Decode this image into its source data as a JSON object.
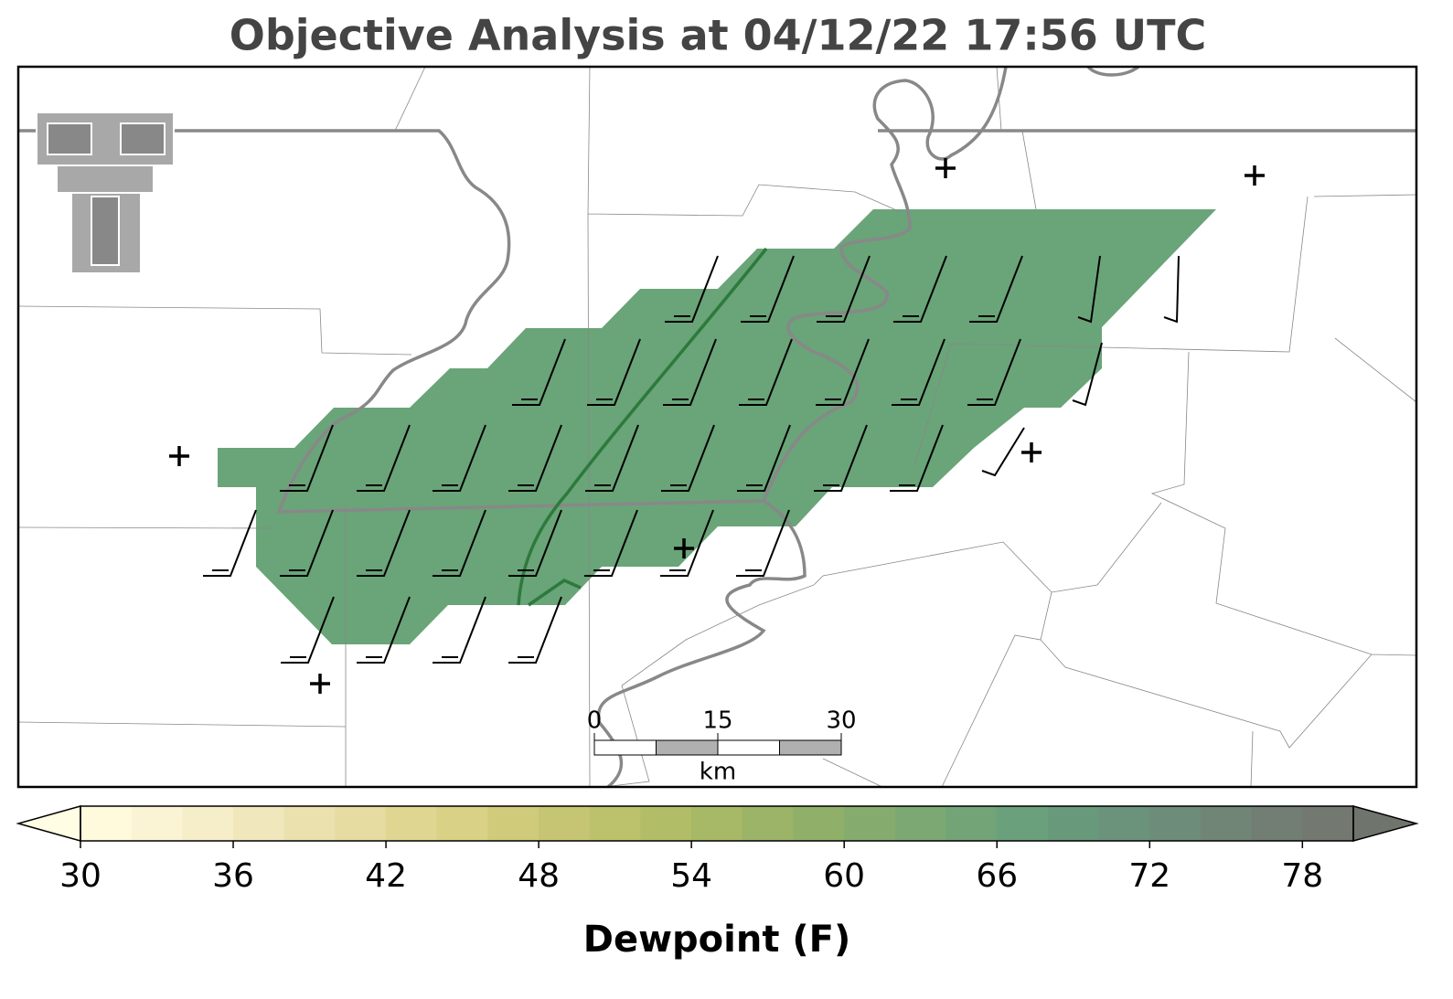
{
  "title": "Objective Analysis at 04/12/22 17:56 UTC",
  "colorbar": {
    "label": "Dewpoint (F)",
    "lim": [
      30,
      80
    ],
    "ticks": [
      30,
      36,
      42,
      48,
      54,
      60,
      66,
      72,
      78
    ],
    "colors": [
      "#fffadc",
      "#fbf4d4",
      "#f6eec8",
      "#f1e7bc",
      "#ebe1ae",
      "#e6dba0",
      "#dfd692",
      "#d8d186",
      "#cfcb7b",
      "#c6c573",
      "#bcc16b",
      "#b2bd67",
      "#a7b866",
      "#9bb467",
      "#90b06a",
      "#85ac6e",
      "#7ba873",
      "#72a478",
      "#6ba07c",
      "#68997b",
      "#6b937c",
      "#6d8c79",
      "#708576",
      "#727e73",
      "#737870"
    ],
    "under_color": "#fffde4",
    "over_color": "#6f756c"
  },
  "scale_bar": {
    "lim": [
      0,
      30
    ],
    "ticks": [
      0,
      15,
      30
    ],
    "unit": "km"
  },
  "analysis_fill_color": "#6aa479"
}
